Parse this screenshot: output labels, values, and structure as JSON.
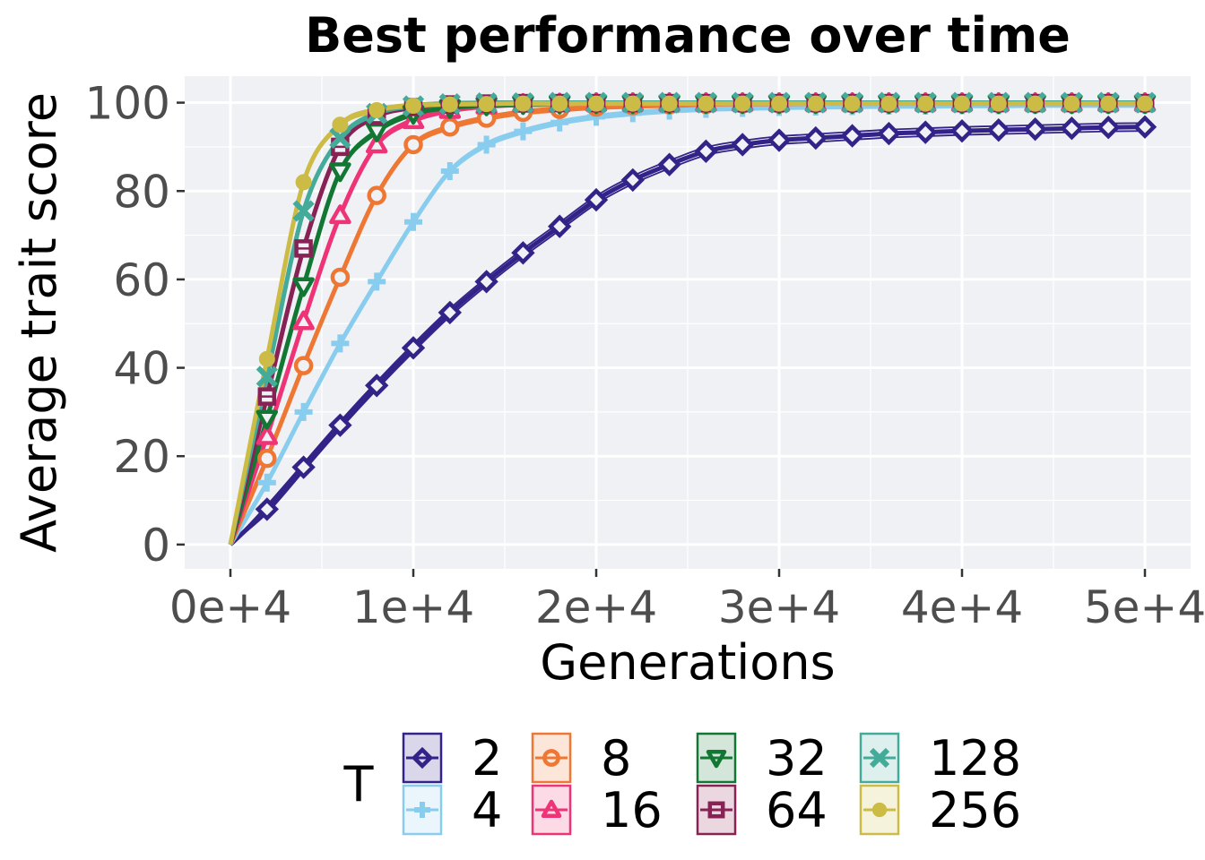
{
  "chart_data": {
    "type": "line",
    "title": "Best performance over time",
    "xlabel": "Generations",
    "ylabel": "Average trait score",
    "xlim": [
      -2500,
      52500
    ],
    "ylim": [
      -5.5,
      106
    ],
    "x_ticks": [
      0,
      10000,
      20000,
      30000,
      40000,
      50000
    ],
    "x_tick_labels": [
      "0e+4",
      "1e+4",
      "2e+4",
      "3e+4",
      "4e+4",
      "5e+4"
    ],
    "y_ticks": [
      0,
      20,
      40,
      60,
      80,
      100
    ],
    "y_tick_labels": [
      "0",
      "20",
      "40",
      "60",
      "80",
      "100"
    ],
    "grid": true,
    "legend": {
      "title": "T",
      "position": "bottom"
    },
    "x": [
      0,
      2000,
      4000,
      6000,
      8000,
      10000,
      12000,
      14000,
      16000,
      18000,
      20000,
      22000,
      24000,
      26000,
      28000,
      30000,
      32000,
      34000,
      36000,
      38000,
      40000,
      42000,
      44000,
      46000,
      48000,
      50000
    ],
    "series": [
      {
        "name": "2",
        "color": "#332288",
        "marker": "diamond",
        "values": [
          0,
          8,
          17.5,
          27,
          36,
          44.5,
          52.5,
          59.5,
          66,
          72,
          78,
          82.5,
          86,
          89,
          90.5,
          91.5,
          92,
          92.5,
          93,
          93.3,
          93.6,
          93.8,
          94,
          94.2,
          94.4,
          94.5
        ]
      },
      {
        "name": "4",
        "color": "#88CCEE",
        "marker": "plus",
        "values": [
          0,
          14,
          30,
          45.5,
          59.5,
          73,
          84.5,
          90.5,
          93.5,
          95.5,
          96.8,
          97.6,
          98.2,
          98.6,
          98.8,
          99,
          99.1,
          99.2,
          99.3,
          99.3,
          99.4,
          99.4,
          99.5,
          99.5,
          99.5,
          99.5
        ]
      },
      {
        "name": "8",
        "color": "#EE7733",
        "marker": "circle-open",
        "values": [
          0,
          19.5,
          40.5,
          60.5,
          79,
          90.5,
          94.5,
          96.5,
          97.8,
          98.5,
          99,
          99.3,
          99.5,
          99.6,
          99.7,
          99.7,
          99.8,
          99.8,
          99.8,
          99.8,
          99.8,
          99.8,
          99.8,
          99.8,
          99.8,
          99.8
        ]
      },
      {
        "name": "16",
        "color": "#EE3377",
        "marker": "triangle-up",
        "values": [
          0,
          24.5,
          50.5,
          74.5,
          90.5,
          96,
          98.3,
          99.3,
          99.7,
          99.8,
          99.9,
          99.9,
          99.9,
          99.9,
          99.9,
          99.9,
          99.9,
          99.9,
          99.9,
          99.9,
          99.9,
          99.9,
          99.9,
          99.9,
          99.9,
          99.9
        ]
      },
      {
        "name": "32",
        "color": "#117733",
        "marker": "triangle-down",
        "values": [
          0,
          28.5,
          58.5,
          84.5,
          93.5,
          97.5,
          98.8,
          99.4,
          99.7,
          99.8,
          99.9,
          99.9,
          99.9,
          99.9,
          99.9,
          99.9,
          99.9,
          99.9,
          99.9,
          99.9,
          99.9,
          99.9,
          99.9,
          99.9,
          99.9,
          99.9
        ]
      },
      {
        "name": "64",
        "color": "#882255",
        "marker": "square-cross",
        "values": [
          0,
          33.5,
          67,
          90,
          97,
          99,
          99.6,
          99.8,
          99.9,
          99.9,
          99.9,
          99.9,
          99.9,
          99.9,
          99.9,
          99.9,
          99.9,
          99.9,
          99.9,
          99.9,
          99.9,
          99.9,
          99.9,
          99.9,
          99.9,
          99.9
        ]
      },
      {
        "name": "128",
        "color": "#44AA99",
        "marker": "x",
        "values": [
          0,
          38,
          75.5,
          92,
          97.5,
          99.2,
          99.7,
          99.9,
          99.9,
          100,
          100,
          100,
          100,
          100,
          100,
          100,
          100,
          100,
          100,
          100,
          100,
          100,
          100,
          100,
          100,
          100
        ]
      },
      {
        "name": "256",
        "color": "#CCBB44",
        "marker": "circle",
        "values": [
          0,
          42,
          82,
          95,
          98.3,
          99.3,
          99.6,
          99.7,
          99.8,
          99.8,
          99.8,
          99.8,
          99.8,
          99.8,
          99.8,
          99.8,
          99.8,
          99.8,
          99.8,
          99.8,
          99.8,
          99.8,
          99.8,
          99.8,
          99.8,
          99.8
        ]
      }
    ]
  }
}
